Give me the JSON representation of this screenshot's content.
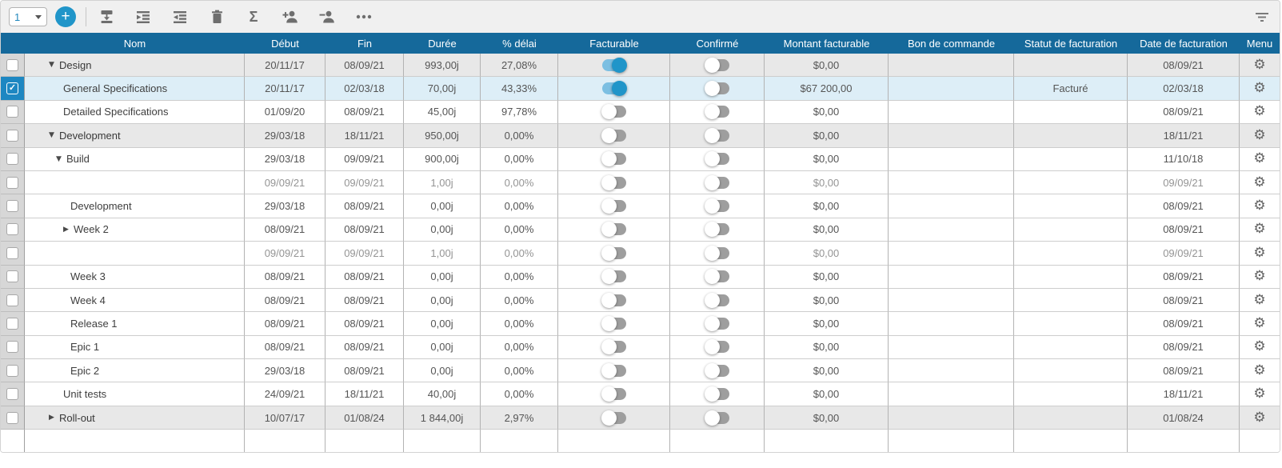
{
  "toolbar": {
    "level_select_value": "1",
    "add_button_label": "+",
    "icons": [
      "insert-row-below-icon",
      "indent-icon",
      "outdent-icon",
      "delete-icon",
      "sum-icon",
      "add-assignee-icon",
      "remove-assignee-icon",
      "more-options-icon"
    ],
    "right_icon": "filter-icon"
  },
  "colors": {
    "header_bg": "#15699b",
    "accent_blue": "#2095c9",
    "toggle_on_track": "#7cbfe2",
    "toggle_off": "#9e9e9e",
    "selected_row_bg": "#ddeef7",
    "selected_check_cell_bg": "#1d87c2",
    "group_row_bg": "#e8e8e8"
  },
  "table": {
    "columns": [
      {
        "key": "select",
        "label": ""
      },
      {
        "key": "name",
        "label": "Nom"
      },
      {
        "key": "start",
        "label": "Début"
      },
      {
        "key": "end",
        "label": "Fin"
      },
      {
        "key": "duration",
        "label": "Durée"
      },
      {
        "key": "delay",
        "label": "% délai"
      },
      {
        "key": "billable",
        "label": "Facturable"
      },
      {
        "key": "confirmed",
        "label": "Confirmé"
      },
      {
        "key": "amount",
        "label": "Montant facturable"
      },
      {
        "key": "po",
        "label": "Bon de commande"
      },
      {
        "key": "status",
        "label": "Statut de facturation"
      },
      {
        "key": "billing_date",
        "label": "Date de facturation"
      },
      {
        "key": "menu",
        "label": "Menu"
      }
    ],
    "rows": [
      {
        "name": "Design",
        "level": 0,
        "expand": "expanded",
        "checked": false,
        "has_controls": true,
        "style": "group",
        "start": "20/11/17",
        "end": "08/09/21",
        "duration": "993,00j",
        "delay": "27,08%",
        "billable": true,
        "confirmed": false,
        "amount": "$0,00",
        "po": "",
        "status": "",
        "billing_date": "08/09/21"
      },
      {
        "name": "General Specifications",
        "level": 1,
        "expand": "none",
        "checked": true,
        "has_controls": true,
        "style": "selected",
        "start": "20/11/17",
        "end": "02/03/18",
        "duration": "70,00j",
        "delay": "43,33%",
        "billable": true,
        "confirmed": false,
        "amount": "$67 200,00",
        "po": "",
        "status": "Facturé",
        "billing_date": "02/03/18"
      },
      {
        "name": "Detailed Specifications",
        "level": 1,
        "expand": "none",
        "checked": false,
        "has_controls": true,
        "style": "normal",
        "start": "01/09/20",
        "end": "08/09/21",
        "duration": "45,00j",
        "delay": "97,78%",
        "billable": false,
        "confirmed": false,
        "amount": "$0,00",
        "po": "",
        "status": "",
        "billing_date": "08/09/21"
      },
      {
        "name": "Development",
        "level": 0,
        "expand": "expanded",
        "checked": false,
        "has_controls": true,
        "style": "group",
        "start": "29/03/18",
        "end": "18/11/21",
        "duration": "950,00j",
        "delay": "0,00%",
        "billable": false,
        "confirmed": false,
        "amount": "$0,00",
        "po": "",
        "status": "",
        "billing_date": "18/11/21"
      },
      {
        "name": "Build",
        "level": 1,
        "expand": "expanded",
        "checked": false,
        "has_controls": true,
        "style": "normal",
        "start": "29/03/18",
        "end": "09/09/21",
        "duration": "900,00j",
        "delay": "0,00%",
        "billable": false,
        "confirmed": false,
        "amount": "$0,00",
        "po": "",
        "status": "",
        "billing_date": "11/10/18"
      },
      {
        "name": "",
        "level": 2,
        "expand": "none",
        "checked": false,
        "has_controls": true,
        "style": "muted",
        "start": "09/09/21",
        "end": "09/09/21",
        "duration": "1,00j",
        "delay": "0,00%",
        "billable": false,
        "confirmed": false,
        "amount": "$0,00",
        "po": "",
        "status": "",
        "billing_date": "09/09/21"
      },
      {
        "name": "Development",
        "level": 2,
        "expand": "none",
        "checked": false,
        "has_controls": true,
        "style": "normal",
        "start": "29/03/18",
        "end": "08/09/21",
        "duration": "0,00j",
        "delay": "0,00%",
        "billable": false,
        "confirmed": false,
        "amount": "$0,00",
        "po": "",
        "status": "",
        "billing_date": "08/09/21"
      },
      {
        "name": "Week 2",
        "level": 2,
        "expand": "collapsed",
        "checked": false,
        "has_controls": true,
        "style": "normal",
        "start": "08/09/21",
        "end": "08/09/21",
        "duration": "0,00j",
        "delay": "0,00%",
        "billable": false,
        "confirmed": false,
        "amount": "$0,00",
        "po": "",
        "status": "",
        "billing_date": "08/09/21"
      },
      {
        "name": "",
        "level": 2,
        "expand": "none",
        "checked": false,
        "has_controls": true,
        "style": "muted",
        "start": "09/09/21",
        "end": "09/09/21",
        "duration": "1,00j",
        "delay": "0,00%",
        "billable": false,
        "confirmed": false,
        "amount": "$0,00",
        "po": "",
        "status": "",
        "billing_date": "09/09/21"
      },
      {
        "name": "Week 3",
        "level": 2,
        "expand": "none",
        "checked": false,
        "has_controls": true,
        "style": "normal",
        "start": "08/09/21",
        "end": "08/09/21",
        "duration": "0,00j",
        "delay": "0,00%",
        "billable": false,
        "confirmed": false,
        "amount": "$0,00",
        "po": "",
        "status": "",
        "billing_date": "08/09/21"
      },
      {
        "name": "Week 4",
        "level": 2,
        "expand": "none",
        "checked": false,
        "has_controls": true,
        "style": "normal",
        "start": "08/09/21",
        "end": "08/09/21",
        "duration": "0,00j",
        "delay": "0,00%",
        "billable": false,
        "confirmed": false,
        "amount": "$0,00",
        "po": "",
        "status": "",
        "billing_date": "08/09/21"
      },
      {
        "name": "Release 1",
        "level": 2,
        "expand": "none",
        "checked": false,
        "has_controls": true,
        "style": "normal",
        "start": "08/09/21",
        "end": "08/09/21",
        "duration": "0,00j",
        "delay": "0,00%",
        "billable": false,
        "confirmed": false,
        "amount": "$0,00",
        "po": "",
        "status": "",
        "billing_date": "08/09/21"
      },
      {
        "name": "Epic 1",
        "level": 2,
        "expand": "none",
        "checked": false,
        "has_controls": true,
        "style": "normal",
        "start": "08/09/21",
        "end": "08/09/21",
        "duration": "0,00j",
        "delay": "0,00%",
        "billable": false,
        "confirmed": false,
        "amount": "$0,00",
        "po": "",
        "status": "",
        "billing_date": "08/09/21"
      },
      {
        "name": "Epic 2",
        "level": 2,
        "expand": "none",
        "checked": false,
        "has_controls": true,
        "style": "normal",
        "start": "29/03/18",
        "end": "08/09/21",
        "duration": "0,00j",
        "delay": "0,00%",
        "billable": false,
        "confirmed": false,
        "amount": "$0,00",
        "po": "",
        "status": "",
        "billing_date": "08/09/21"
      },
      {
        "name": "Unit tests",
        "level": 1,
        "expand": "none",
        "checked": false,
        "has_controls": true,
        "style": "normal",
        "start": "24/09/21",
        "end": "18/11/21",
        "duration": "40,00j",
        "delay": "0,00%",
        "billable": false,
        "confirmed": false,
        "amount": "$0,00",
        "po": "",
        "status": "",
        "billing_date": "18/11/21"
      },
      {
        "name": "Roll-out",
        "level": 0,
        "expand": "collapsed",
        "checked": false,
        "has_controls": true,
        "style": "group",
        "start": "10/07/17",
        "end": "01/08/24",
        "duration": "1 844,00j",
        "delay": "2,97%",
        "billable": false,
        "confirmed": false,
        "amount": "$0,00",
        "po": "",
        "status": "",
        "billing_date": "01/08/24"
      },
      {
        "name": "",
        "level": 0,
        "expand": "none",
        "checked": false,
        "has_controls": false,
        "style": "normal",
        "start": "",
        "end": "",
        "duration": "",
        "delay": "",
        "billable": null,
        "confirmed": null,
        "amount": "",
        "po": "",
        "status": "",
        "billing_date": ""
      }
    ]
  }
}
